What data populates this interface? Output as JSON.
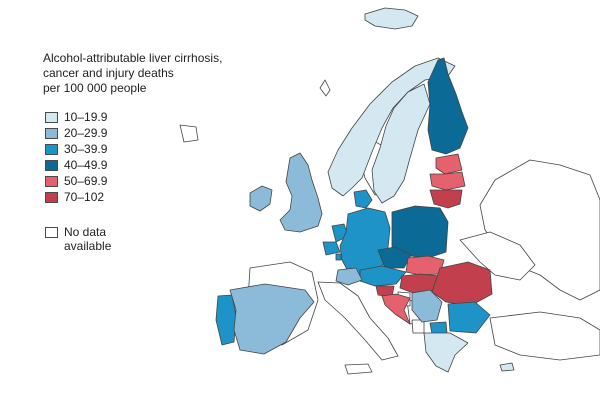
{
  "title_lines": [
    "Alcohol-attributable liver cirrhosis,",
    "cancer and injury deaths",
    "per 100 000 people"
  ],
  "legend": [
    {
      "label": "10–19.9",
      "color": "#d4e8f2"
    },
    {
      "label": "20–29.9",
      "color": "#8bbbd9"
    },
    {
      "label": "30–39.9",
      "color": "#1e93c8"
    },
    {
      "label": "40–49.9",
      "color": "#0c6a96"
    },
    {
      "label": "50–69.9",
      "color": "#e5616d"
    },
    {
      "label": "70–102",
      "color": "#c2404d"
    }
  ],
  "no_data": {
    "label": "No data available",
    "color": "#ffffff"
  },
  "countries": [
    {
      "name": "Iceland",
      "class": "10–19.9"
    },
    {
      "name": "Norway",
      "class": "10–19.9"
    },
    {
      "name": "Sweden",
      "class": "10–19.9"
    },
    {
      "name": "Finland",
      "class": "40–49.9"
    },
    {
      "name": "Estonia",
      "class": "50–69.9"
    },
    {
      "name": "Latvia",
      "class": "50–69.9"
    },
    {
      "name": "Lithuania",
      "class": "70–102"
    },
    {
      "name": "Ireland",
      "class": "20–29.9"
    },
    {
      "name": "United Kingdom",
      "class": "20–29.9"
    },
    {
      "name": "Denmark",
      "class": "30–39.9"
    },
    {
      "name": "Netherlands",
      "class": "30–39.9"
    },
    {
      "name": "Belgium",
      "class": "30–39.9"
    },
    {
      "name": "Luxembourg",
      "class": "30–39.9"
    },
    {
      "name": "Germany",
      "class": "30–39.9"
    },
    {
      "name": "Poland",
      "class": "40–49.9"
    },
    {
      "name": "Czechia",
      "class": "40–49.9"
    },
    {
      "name": "Slovakia",
      "class": "50–69.9"
    },
    {
      "name": "Austria",
      "class": "30–39.9"
    },
    {
      "name": "Switzerland",
      "class": "20–29.9"
    },
    {
      "name": "Hungary",
      "class": "70–102"
    },
    {
      "name": "Slovenia",
      "class": "70–102"
    },
    {
      "name": "Croatia",
      "class": "50–69.9"
    },
    {
      "name": "Romania",
      "class": "70–102"
    },
    {
      "name": "Serbia",
      "class": "20–29.9"
    },
    {
      "name": "Bulgaria",
      "class": "30–39.9"
    },
    {
      "name": "North Macedonia",
      "class": "30–39.9"
    },
    {
      "name": "Greece",
      "class": "10–19.9"
    },
    {
      "name": "Portugal",
      "class": "30–39.9"
    },
    {
      "name": "Spain",
      "class": "20–29.9"
    },
    {
      "name": "Cyprus",
      "class": "10–19.9"
    }
  ]
}
